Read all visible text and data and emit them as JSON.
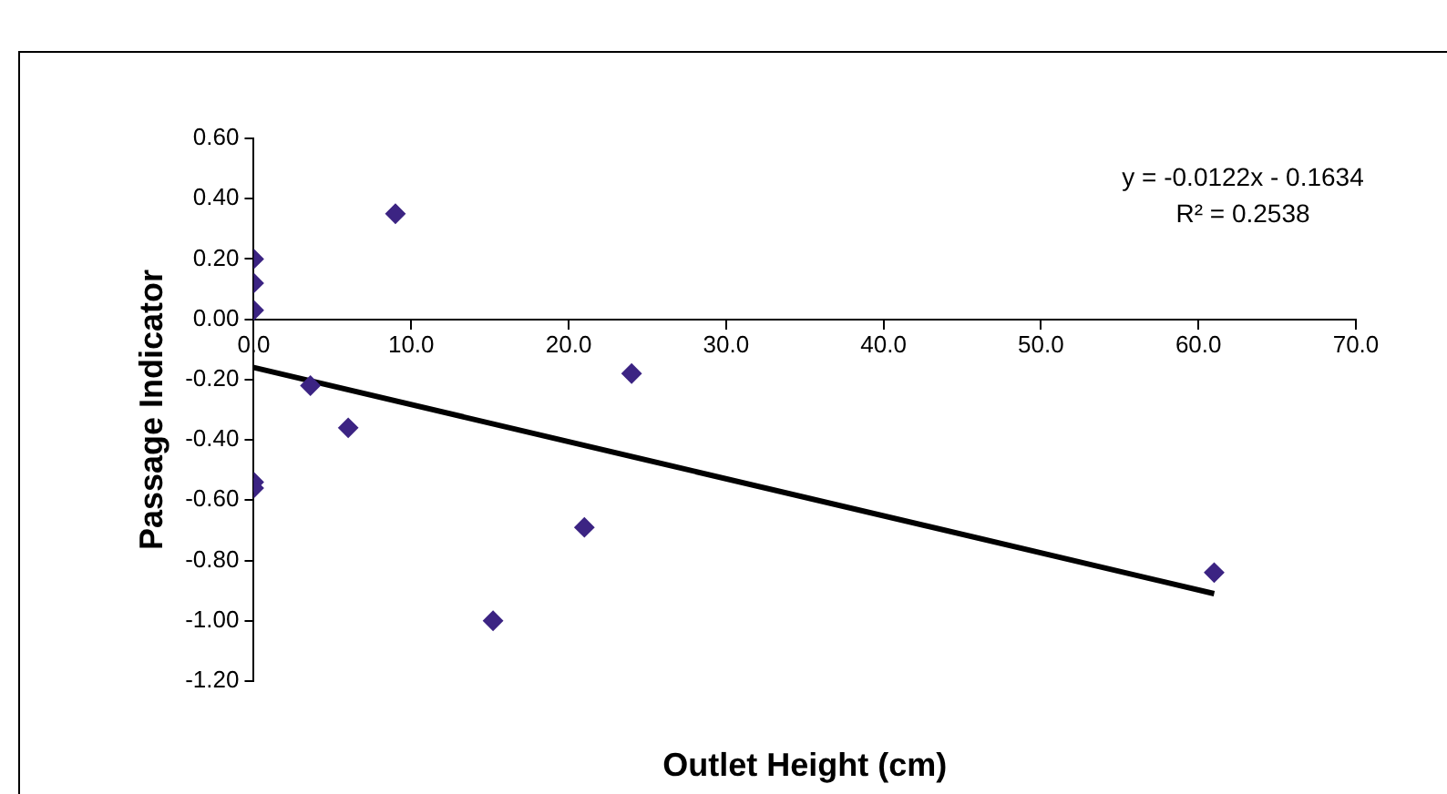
{
  "chart_data": {
    "type": "scatter",
    "xlabel": "Outlet Height (cm)",
    "ylabel": "Passage Indicator",
    "series": [
      {
        "color": "#3c2483",
        "x": [
          0,
          0,
          0,
          9.0,
          3.6,
          6.0,
          0,
          0,
          15.2,
          21.0,
          24.0,
          61.0
        ],
        "values": [
          0.2,
          0.12,
          0.03,
          0.35,
          -0.22,
          -0.36,
          -0.54,
          -0.56,
          -1.0,
          -0.69,
          -0.18,
          -0.84
        ]
      },
      {
        "type": "line",
        "marker": "none",
        "color": "#000000",
        "x": [
          0,
          61.0
        ],
        "values": [
          -0.16,
          -0.91
        ]
      }
    ],
    "xlim": [
      0,
      70
    ],
    "xticks": [
      {
        "value": 0,
        "label": "0.0"
      },
      {
        "value": 10,
        "label": "10.0"
      },
      {
        "value": 20,
        "label": "20.0"
      },
      {
        "value": 30,
        "label": "30.0"
      },
      {
        "value": 40,
        "label": "40.0"
      },
      {
        "value": 50,
        "label": "50.0"
      },
      {
        "value": 60,
        "label": "60.0"
      },
      {
        "value": 70,
        "label": "70.0"
      }
    ],
    "ylim": [
      -1.2,
      0.6
    ],
    "yticks": [
      {
        "value": -1.2,
        "label": "-1.20"
      },
      {
        "value": -1,
        "label": "-1.00"
      },
      {
        "value": -0.8,
        "label": "-0.80"
      },
      {
        "value": -0.6,
        "label": "-0.60"
      },
      {
        "value": -0.4,
        "label": "-0.40"
      },
      {
        "value": -0.2,
        "label": "-0.20"
      },
      {
        "value": 0,
        "label": "0.00"
      },
      {
        "value": 0.2,
        "label": "0.20"
      },
      {
        "value": 0.4,
        "label": "0.40"
      },
      {
        "value": 0.6,
        "label": "0.60"
      }
    ],
    "annotations": [
      "y = -0.0122x - 0.1634",
      "R² = 0.2538"
    ],
    "grid": false,
    "legend": false,
    "marker": "diamond"
  }
}
